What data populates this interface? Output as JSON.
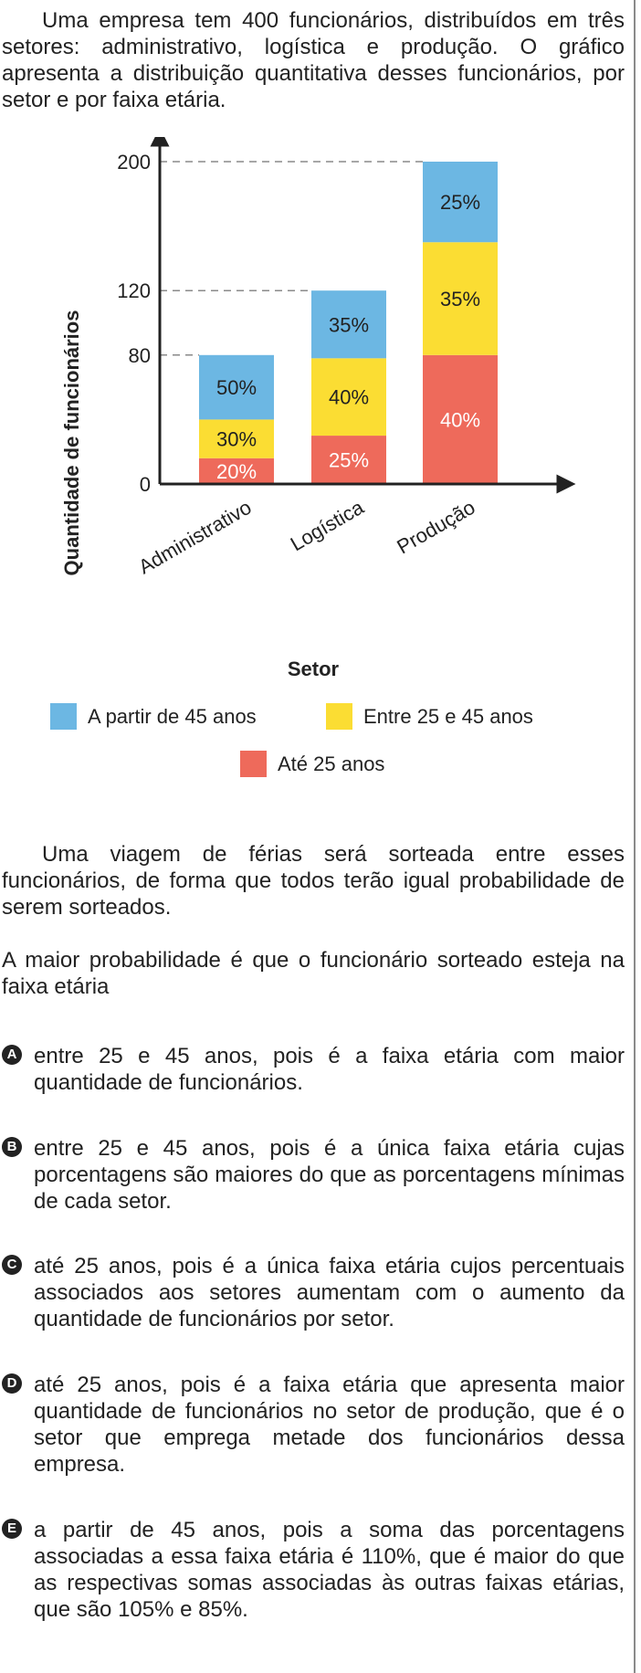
{
  "intro": "Uma empresa tem 400 funcionários, distribuídos em três setores: administrativo, logística e produção. O gráfico apresenta a distribuição quantitativa desses funcionários, por setor e por faixa etária.",
  "chart_data": {
    "type": "bar",
    "stacked": true,
    "categories": [
      "Administrativo",
      "Logística",
      "Produção"
    ],
    "totals": [
      80,
      120,
      200
    ],
    "series": [
      {
        "name": "Até 25 anos",
        "color": "#ee6a5b",
        "percents": [
          20,
          25,
          40
        ],
        "labels": [
          "20%",
          "25%",
          "40%"
        ]
      },
      {
        "name": "Entre 25 e 45 anos",
        "color": "#fbdd33",
        "percents": [
          30,
          40,
          35
        ],
        "labels": [
          "30%",
          "40%",
          "35%"
        ]
      },
      {
        "name": "A partir de 45 anos",
        "color": "#6cb7e3",
        "percents": [
          50,
          35,
          25
        ],
        "labels": [
          "50%",
          "35%",
          "25%"
        ]
      }
    ],
    "xlabel": "Setor",
    "ylabel": "Quantidade de funcionários",
    "yticks": [
      0,
      80,
      120,
      200
    ],
    "ylim": [
      0,
      200
    ],
    "grid": false,
    "dashed_guides": true,
    "legend_position": "bottom"
  },
  "paragraph2": "Uma viagem de férias será sorteada entre esses funcionários, de forma que todos terão igual probabilidade de serem sorteados.",
  "question": "A maior probabilidade é que o funcionário sorteado esteja na faixa etária",
  "options": [
    {
      "letter": "A",
      "text": "entre 25 e 45 anos, pois é a faixa etária com maior quantidade de funcionários."
    },
    {
      "letter": "B",
      "text": "entre 25 e 45 anos, pois é a única faixa etária cujas porcentagens são maiores do que as porcentagens mínimas de cada setor."
    },
    {
      "letter": "C",
      "text": "até 25 anos, pois é a única faixa etária cujos percentuais associados aos setores aumentam com o aumento da quantidade de funcionários por setor."
    },
    {
      "letter": "D",
      "text": "até 25 anos, pois é a faixa etária que apresenta maior quantidade de funcionários no setor de produção, que é o setor que emprega metade dos funcionários dessa empresa."
    },
    {
      "letter": "E",
      "text": "a partir de 45 anos, pois a soma das porcentagens associadas a essa faixa etária é 110%, que é maior do que as respectivas somas associadas às outras faixas etárias, que são 105% e 85%."
    }
  ]
}
